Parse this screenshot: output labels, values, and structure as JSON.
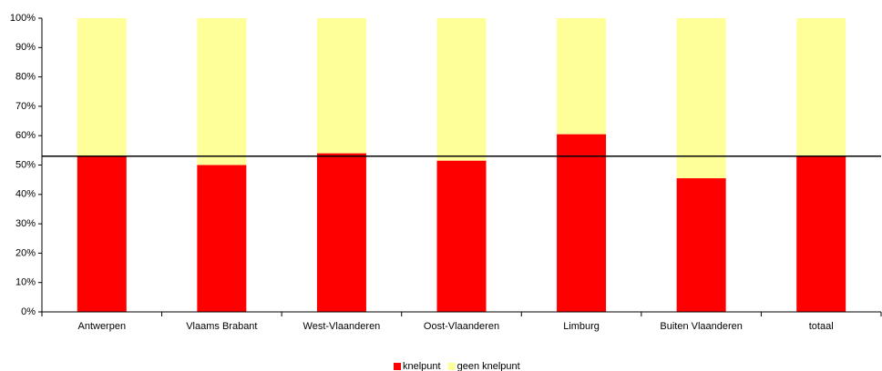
{
  "chart_data": {
    "type": "stacked_bar",
    "categories": [
      "Antwerpen",
      "Vlaams Brabant",
      "West-Vlaanderen",
      "Oost-Vlaanderen",
      "Limburg",
      "Buiten Vlaanderen",
      "totaal"
    ],
    "series": [
      {
        "name": "knelpunt",
        "color": "#ff0000",
        "values": [
          53,
          50,
          54,
          51.5,
          60.5,
          45.5,
          53
        ]
      },
      {
        "name": "geen knelpunt",
        "color": "#ffff99",
        "values": [
          47,
          50,
          46,
          48.5,
          39.5,
          54.5,
          47
        ]
      }
    ],
    "reference_line": 53,
    "ylim": [
      0,
      100
    ],
    "yticks": [
      {
        "value": 0,
        "label": "0%"
      },
      {
        "value": 10,
        "label": "10%"
      },
      {
        "value": 20,
        "label": "20%"
      },
      {
        "value": 30,
        "label": "30%"
      },
      {
        "value": 40,
        "label": "40%"
      },
      {
        "value": 50,
        "label": "50%"
      },
      {
        "value": 60,
        "label": "60%"
      },
      {
        "value": 70,
        "label": "70%"
      },
      {
        "value": 80,
        "label": "80%"
      },
      {
        "value": 90,
        "label": "90%"
      },
      {
        "value": 100,
        "label": "100%"
      }
    ],
    "legend": "bottom"
  }
}
